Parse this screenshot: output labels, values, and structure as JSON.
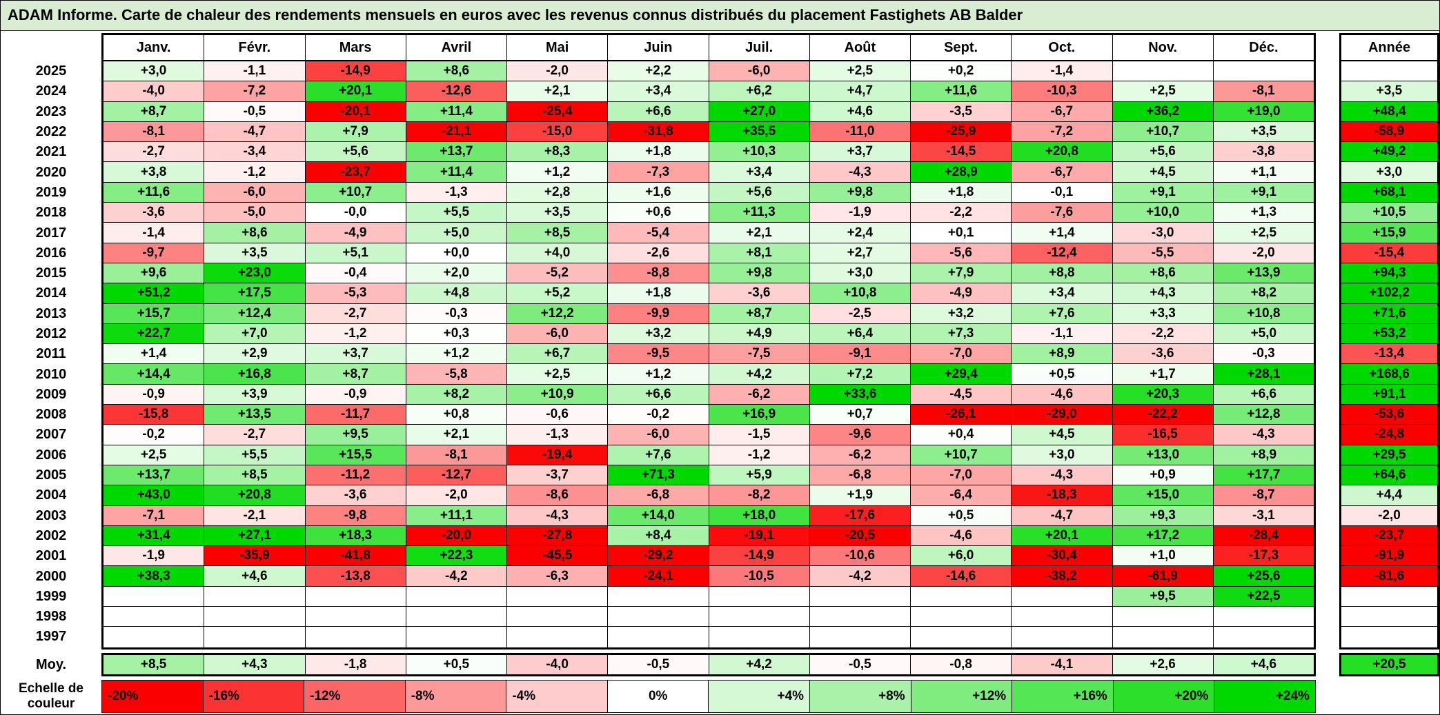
{
  "chart_data": {
    "type": "heatmap",
    "title": "ADAM Informe. Carte de chaleur des rendements mensuels en euros avec les revenus connus distribués du placement Fastighets AB Balder",
    "columns": [
      "Janv.",
      "Févr.",
      "Mars",
      "Avril",
      "Mai",
      "Juin",
      "Juil.",
      "Août",
      "Sept.",
      "Oct.",
      "Nov.",
      "Déc."
    ],
    "annee_header": "Année",
    "rows": [
      {
        "year": "2025",
        "values": [
          "+3,0",
          "-1,1",
          "-14,9",
          "+8,6",
          "-2,0",
          "+2,2",
          "-6,0",
          "+2,5",
          "+0,2",
          "-1,4",
          "",
          ""
        ],
        "annee": ""
      },
      {
        "year": "2024",
        "values": [
          "-4,0",
          "-7,2",
          "+20,1",
          "-12,6",
          "+2,1",
          "+3,4",
          "+6,2",
          "+4,7",
          "+11,6",
          "-10,3",
          "+2,5",
          "-8,1"
        ],
        "annee": "+3,5"
      },
      {
        "year": "2023",
        "values": [
          "+8,7",
          "-0,5",
          "-20,1",
          "+11,4",
          "-25,4",
          "+6,6",
          "+27,0",
          "+4,6",
          "-3,5",
          "-6,7",
          "+36,2",
          "+19,0"
        ],
        "annee": "+48,4"
      },
      {
        "year": "2022",
        "values": [
          "-8,1",
          "-4,7",
          "+7,9",
          "-21,1",
          "-15,0",
          "-31,8",
          "+35,5",
          "-11,0",
          "-25,9",
          "-7,2",
          "+10,7",
          "+3,5"
        ],
        "annee": "-58,9"
      },
      {
        "year": "2021",
        "values": [
          "-2,7",
          "-3,4",
          "+5,6",
          "+13,7",
          "+8,3",
          "+1,8",
          "+10,3",
          "+3,7",
          "-14,5",
          "+20,8",
          "+5,6",
          "-3,8"
        ],
        "annee": "+49,2"
      },
      {
        "year": "2020",
        "values": [
          "+3,8",
          "-1,2",
          "-23,7",
          "+11,4",
          "+1,2",
          "-7,3",
          "+3,4",
          "-4,3",
          "+28,9",
          "-6,7",
          "+4,5",
          "+1,1"
        ],
        "annee": "+3,0"
      },
      {
        "year": "2019",
        "values": [
          "+11,6",
          "-6,0",
          "+10,7",
          "-1,3",
          "+2,8",
          "+1,6",
          "+5,6",
          "+9,8",
          "+1,8",
          "-0,1",
          "+9,1",
          "+9,1"
        ],
        "annee": "+68,1"
      },
      {
        "year": "2018",
        "values": [
          "-3,6",
          "-5,0",
          "-0,0",
          "+5,5",
          "+3,5",
          "+0,6",
          "+11,3",
          "-1,9",
          "-2,2",
          "-7,6",
          "+10,0",
          "+1,3"
        ],
        "annee": "+10,5"
      },
      {
        "year": "2017",
        "values": [
          "-1,4",
          "+8,6",
          "-4,9",
          "+5,0",
          "+8,5",
          "-5,4",
          "+2,1",
          "+2,4",
          "+0,1",
          "+1,4",
          "-3,0",
          "+2,5"
        ],
        "annee": "+15,9"
      },
      {
        "year": "2016",
        "values": [
          "-9,7",
          "+3,5",
          "+5,1",
          "+0,0",
          "+4,0",
          "-2,6",
          "+8,1",
          "+2,7",
          "-5,6",
          "-12,4",
          "-5,5",
          "-2,0"
        ],
        "annee": "-15,4"
      },
      {
        "year": "2015",
        "values": [
          "+9,6",
          "+23,0",
          "-0,4",
          "+2,0",
          "-5,2",
          "-8,8",
          "+9,8",
          "+3,0",
          "+7,9",
          "+8,8",
          "+8,6",
          "+13,9"
        ],
        "annee": "+94,3"
      },
      {
        "year": "2014",
        "values": [
          "+51,2",
          "+17,5",
          "-5,3",
          "+4,8",
          "+5,2",
          "+1,8",
          "-3,6",
          "+10,8",
          "-4,9",
          "+3,4",
          "+4,3",
          "+8,2"
        ],
        "annee": "+102,2"
      },
      {
        "year": "2013",
        "values": [
          "+15,7",
          "+12,4",
          "-2,7",
          "-0,3",
          "+12,2",
          "-9,9",
          "+8,7",
          "-2,5",
          "+3,2",
          "+7,6",
          "+3,3",
          "+10,8"
        ],
        "annee": "+71,6"
      },
      {
        "year": "2012",
        "values": [
          "+22,7",
          "+7,0",
          "-1,2",
          "+0,3",
          "-6,0",
          "+3,2",
          "+4,9",
          "+6,4",
          "+7,3",
          "-1,1",
          "-2,2",
          "+5,0"
        ],
        "annee": "+53,2"
      },
      {
        "year": "2011",
        "values": [
          "+1,4",
          "+2,9",
          "+3,7",
          "+1,2",
          "+6,7",
          "-9,5",
          "-7,5",
          "-9,1",
          "-7,0",
          "+8,9",
          "-3,6",
          "-0,3"
        ],
        "annee": "-13,4"
      },
      {
        "year": "2010",
        "values": [
          "+14,4",
          "+16,8",
          "+8,7",
          "-5,8",
          "+2,5",
          "+1,2",
          "+4,2",
          "+7,2",
          "+29,4",
          "+0,5",
          "+1,7",
          "+28,1"
        ],
        "annee": "+168,6"
      },
      {
        "year": "2009",
        "values": [
          "-0,9",
          "+3,9",
          "-0,9",
          "+8,2",
          "+10,9",
          "+6,6",
          "-6,2",
          "+33,6",
          "-4,5",
          "-4,6",
          "+20,3",
          "+6,6"
        ],
        "annee": "+91,1"
      },
      {
        "year": "2008",
        "values": [
          "-15,8",
          "+13,5",
          "-11,7",
          "+0,8",
          "-0,6",
          "-0,2",
          "+16,9",
          "+0,7",
          "-26,1",
          "-29,0",
          "-22,2",
          "+12,8"
        ],
        "annee": "-53,6"
      },
      {
        "year": "2007",
        "values": [
          "-0,2",
          "-2,7",
          "+9,5",
          "+2,1",
          "-1,3",
          "-6,0",
          "-1,5",
          "-9,6",
          "+0,4",
          "+4,5",
          "-16,5",
          "-4,3"
        ],
        "annee": "-24,8"
      },
      {
        "year": "2006",
        "values": [
          "+2,5",
          "+5,5",
          "+15,5",
          "-8,1",
          "-19,4",
          "+7,6",
          "-1,2",
          "-6,2",
          "+10,7",
          "+3,0",
          "+13,0",
          "+8,9"
        ],
        "annee": "+29,5"
      },
      {
        "year": "2005",
        "values": [
          "+13,7",
          "+8,5",
          "-11,2",
          "-12,7",
          "-3,7",
          "+71,3",
          "+5,9",
          "-6,8",
          "-7,0",
          "-4,3",
          "+0,9",
          "+17,7"
        ],
        "annee": "+64,6"
      },
      {
        "year": "2004",
        "values": [
          "+43,0",
          "+20,8",
          "-3,6",
          "-2,0",
          "-8,6",
          "-6,8",
          "-8,2",
          "+1,9",
          "-6,4",
          "-18,3",
          "+15,0",
          "-8,7"
        ],
        "annee": "+4,4"
      },
      {
        "year": "2003",
        "values": [
          "-7,1",
          "-2,1",
          "-9,8",
          "+11,1",
          "-4,3",
          "+14,0",
          "+18,0",
          "-17,6",
          "+0,5",
          "-4,7",
          "+9,3",
          "-3,1"
        ],
        "annee": "-2,0"
      },
      {
        "year": "2002",
        "values": [
          "+31,4",
          "+27,1",
          "+18,3",
          "-20,0",
          "-27,8",
          "+8,4",
          "-19,1",
          "-20,5",
          "-4,6",
          "+20,1",
          "+17,2",
          "-28,4"
        ],
        "annee": "-23,7"
      },
      {
        "year": "2001",
        "values": [
          "-1,9",
          "-35,9",
          "-41,8",
          "+22,3",
          "-45,5",
          "-29,2",
          "-14,9",
          "-10,6",
          "+6,0",
          "-30,4",
          "+1,0",
          "-17,3"
        ],
        "annee": "-91,9"
      },
      {
        "year": "2000",
        "values": [
          "+38,3",
          "+4,6",
          "-13,8",
          "-4,2",
          "-6,3",
          "-24,1",
          "-10,5",
          "-4,2",
          "-14,6",
          "-38,2",
          "-61,9",
          "+25,6"
        ],
        "annee": "-81,6"
      },
      {
        "year": "1999",
        "values": [
          "",
          "",
          "",
          "",
          "",
          "",
          "",
          "",
          "",
          "",
          "+9,5",
          "+22,5"
        ],
        "annee": ""
      },
      {
        "year": "1998",
        "values": [
          "",
          "",
          "",
          "",
          "",
          "",
          "",
          "",
          "",
          "",
          "",
          ""
        ],
        "annee": ""
      },
      {
        "year": "1997",
        "values": [
          "",
          "",
          "",
          "",
          "",
          "",
          "",
          "",
          "",
          "",
          "",
          ""
        ],
        "annee": ""
      }
    ],
    "moy": {
      "label": "Moy.",
      "values": [
        "+8,5",
        "+4,3",
        "-1,8",
        "+0,5",
        "-4,0",
        "-0,5",
        "+4,2",
        "-0,5",
        "-0,8",
        "-4,1",
        "+2,6",
        "+4,6"
      ],
      "annee": "+20,5"
    },
    "color_scale": {
      "label_lines": [
        "Echelle de",
        "couleur"
      ],
      "stops": [
        {
          "label": "-20%",
          "value": -20
        },
        {
          "label": "-16%",
          "value": -16
        },
        {
          "label": "-12%",
          "value": -12
        },
        {
          "label": "-8%",
          "value": -8
        },
        {
          "label": "-4%",
          "value": -4
        },
        {
          "label": "0%",
          "value": 0
        },
        {
          "label": "+4%",
          "value": 4
        },
        {
          "label": "+8%",
          "value": 8
        },
        {
          "label": "+12%",
          "value": 12
        },
        {
          "label": "+16%",
          "value": 16
        },
        {
          "label": "+20%",
          "value": 20
        },
        {
          "label": "+24%",
          "value": 24
        }
      ],
      "zero_color": "#FFFFFF",
      "negative_color": "#FB0000",
      "positive_color": "#00D900",
      "negative_saturation": -20,
      "positive_saturation": 24
    }
  },
  "colors": {
    "title_bg": "#D9EDD2"
  }
}
